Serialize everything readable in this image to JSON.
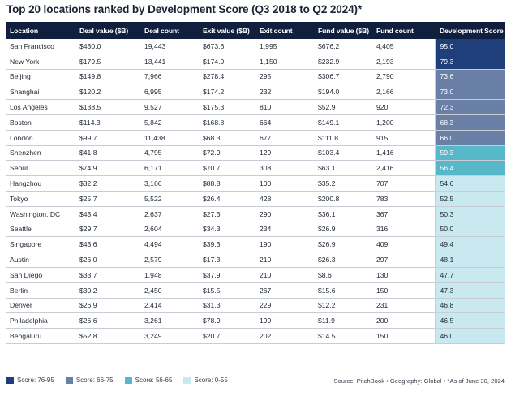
{
  "title": "Top 20 locations ranked by Development Score (Q3 2018 to Q2 2024)*",
  "source": "Source: PitchBook • Geography: Global • *As of June 30, 2024",
  "chart_data": {
    "type": "table",
    "columns": [
      "Location",
      "Deal value ($B)",
      "Deal count",
      "Exit value ($B)",
      "Exit count",
      "Fund value ($B)",
      "Fund count",
      "Development Score"
    ],
    "rows": [
      [
        "San Francisco",
        "$430.0",
        "19,443",
        "$673.6",
        "1,995",
        "$676.2",
        "4,405",
        "95.0"
      ],
      [
        "New York",
        "$179.5",
        "13,441",
        "$174.9",
        "1,150",
        "$232.9",
        "2,193",
        "79.3"
      ],
      [
        "Beijing",
        "$149.8",
        "7,966",
        "$278.4",
        "295",
        "$306.7",
        "2,790",
        "73.6"
      ],
      [
        "Shanghai",
        "$120.2",
        "6,995",
        "$174.2",
        "232",
        "$194.0",
        "2,166",
        "73.0"
      ],
      [
        "Los Angeles",
        "$138.5",
        "9,527",
        "$175.3",
        "810",
        "$52.9",
        "920",
        "72.3"
      ],
      [
        "Boston",
        "$114.3",
        "5,842",
        "$168.8",
        "664",
        "$149.1",
        "1,200",
        "68.3"
      ],
      [
        "London",
        "$99.7",
        "11,438",
        "$68.3",
        "677",
        "$111.8",
        "915",
        "66.0"
      ],
      [
        "Shenzhen",
        "$41.8",
        "4,795",
        "$72.9",
        "129",
        "$103.4",
        "1,416",
        "59.3"
      ],
      [
        "Seoul",
        "$74.9",
        "6,171",
        "$70.7",
        "308",
        "$63.1",
        "2,416",
        "56.4"
      ],
      [
        "Hangzhou",
        "$32.2",
        "3,166",
        "$88.8",
        "100",
        "$35.2",
        "707",
        "54.6"
      ],
      [
        "Tokyo",
        "$25.7",
        "5,522",
        "$26.4",
        "428",
        "$200.8",
        "783",
        "52.5"
      ],
      [
        "Washington, DC",
        "$43.4",
        "2,637",
        "$27.3",
        "290",
        "$36.1",
        "367",
        "50.3"
      ],
      [
        "Seattle",
        "$29.7",
        "2,604",
        "$34.3",
        "234",
        "$26.9",
        "316",
        "50.0"
      ],
      [
        "Singapore",
        "$43.6",
        "4,494",
        "$39.3",
        "190",
        "$26.9",
        "409",
        "49.4"
      ],
      [
        "Austin",
        "$26.0",
        "2,579",
        "$17.3",
        "210",
        "$26.3",
        "297",
        "48.1"
      ],
      [
        "San Diego",
        "$33.7",
        "1,948",
        "$37.9",
        "210",
        "$8.6",
        "130",
        "47.7"
      ],
      [
        "Berlin",
        "$30.2",
        "2,450",
        "$15.5",
        "267",
        "$15.6",
        "150",
        "47.3"
      ],
      [
        "Denver",
        "$26.9",
        "2,414",
        "$31.3",
        "229",
        "$12.2",
        "231",
        "46.8"
      ],
      [
        "Philadelphia",
        "$26.6",
        "3,261",
        "$78.9",
        "199",
        "$11.9",
        "200",
        "46.5"
      ],
      [
        "Bengaluru",
        "$52.8",
        "3,249",
        "$20.7",
        "202",
        "$14.5",
        "150",
        "46.0"
      ]
    ],
    "legend": [
      {
        "label": "Score: 76-95",
        "color": "#1f3f7a",
        "min": 76,
        "max": 95
      },
      {
        "label": "Score: 66-75",
        "color": "#6a7fa6",
        "min": 66,
        "max": 75
      },
      {
        "label": "Score: 56-65",
        "color": "#57b8c9",
        "min": 56,
        "max": 65
      },
      {
        "label": "Score: 0-55",
        "color": "#c9e9f0",
        "min": 0,
        "max": 55
      }
    ]
  }
}
